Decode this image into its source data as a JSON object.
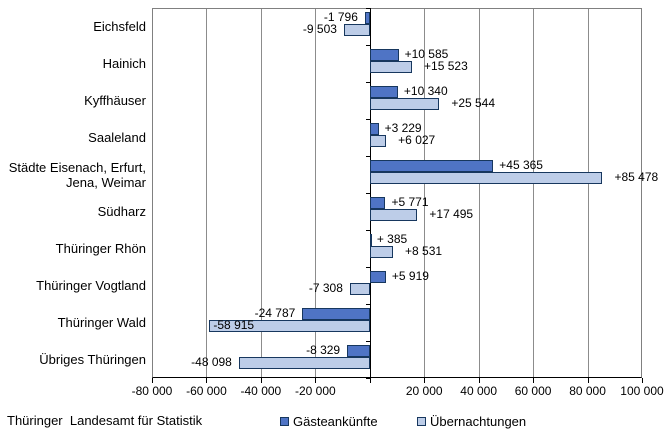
{
  "footer": {
    "source": "Thüringer  Landesamt für Statistik"
  },
  "chart_data": {
    "type": "bar",
    "orientation": "horizontal",
    "title": "",
    "xlabel": "",
    "ylabel": "",
    "grid": true,
    "legend_position": "bottom",
    "categories": [
      "Eichsfeld",
      "Hainich",
      "Kyffhäuser",
      "Saaleland",
      "Städte Eisenach, Erfurt,\nJena, Weimar",
      "Südharz",
      "Thüringer Rhön",
      "Thüringer Vogtland",
      "Thüringer Wald",
      "Übriges Thüringen"
    ],
    "series": [
      {
        "name": "Gästeankünfte",
        "color": "#4F74C5",
        "values": [
          -1796,
          10585,
          10340,
          3229,
          45365,
          5771,
          385,
          5919,
          -24787,
          -8329
        ],
        "labels": [
          "-1 796",
          "+10 585",
          "+10 340",
          "+3 229",
          "+45 365",
          "+5 771",
          "+ 385",
          "+5 919",
          "-24 787",
          "-8 329"
        ],
        "inside_label_indices": []
      },
      {
        "name": "Übernachtungen",
        "color": "#BDCDE8",
        "values": [
          -9503,
          15523,
          25544,
          6027,
          85478,
          17495,
          8531,
          -7308,
          -58915,
          -48098
        ],
        "labels": [
          "-9 503",
          "+15 523",
          "+25 544",
          "+6 027",
          "+85 478",
          "+17 495",
          "+8 531",
          "-7 308",
          "-58 915",
          "-48 098"
        ],
        "inside_label_indices": [
          8
        ]
      }
    ],
    "x_axis": {
      "min": -80000,
      "max": 100000,
      "step": 20000,
      "tick_labels": [
        "-80 000",
        "-60 000",
        "-40 000",
        "-20 000",
        "",
        "20 000",
        "40 000",
        "60 000",
        "80 000",
        "100 000"
      ]
    },
    "colors": {
      "bar_border": "#17375E",
      "gridline": "#8c8c8c",
      "plot_border": "#808080",
      "axis": "#000000"
    }
  }
}
